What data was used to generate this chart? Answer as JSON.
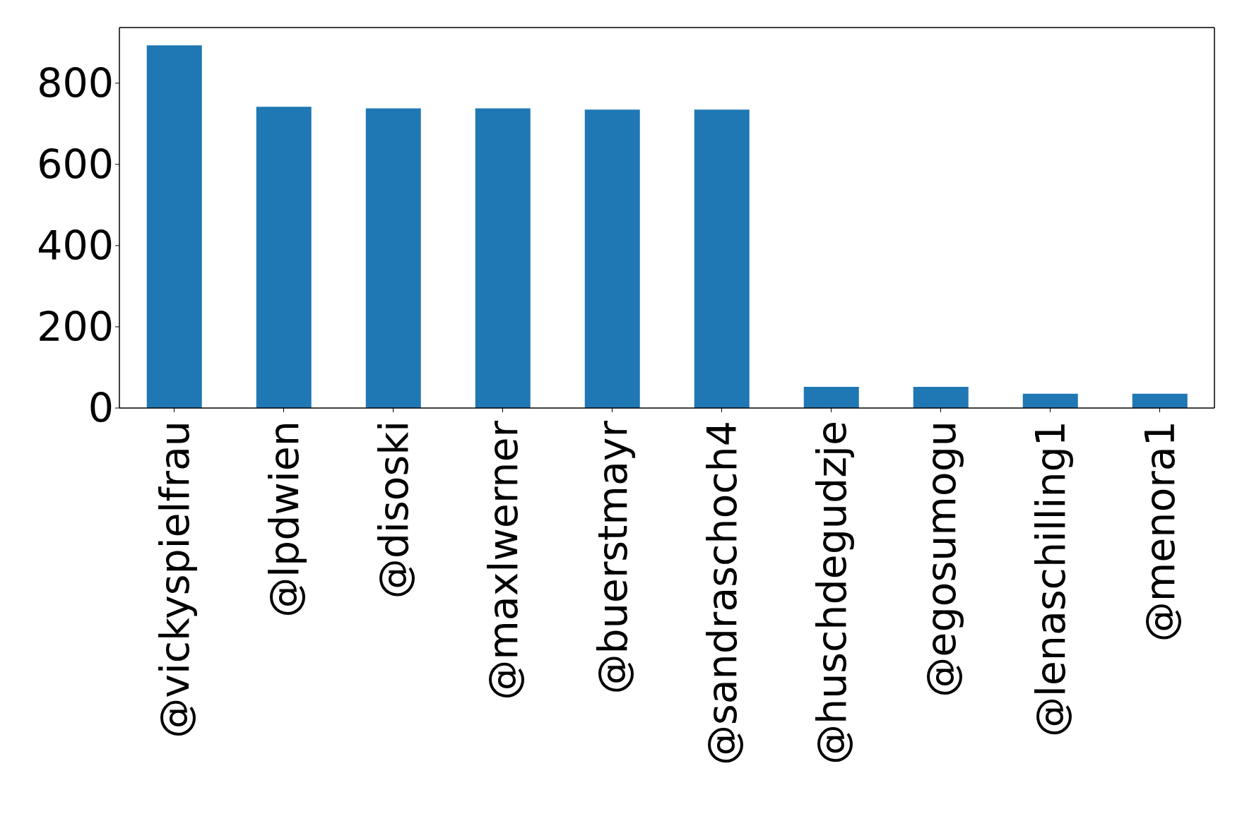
{
  "chart_data": {
    "type": "bar",
    "categories": [
      "@vickyspielfrau",
      "@lpdwien",
      "@disoski",
      "@maxlwerner",
      "@buerstmayr",
      "@sandraschoch4",
      "@huschdegudzje",
      "@egosumogu",
      "@lenaschilling1",
      "@menora1"
    ],
    "values": [
      893,
      742,
      738,
      738,
      735,
      735,
      52,
      52,
      35,
      35
    ],
    "color": "#1f77b4",
    "ylim": [
      0,
      937
    ],
    "yticks": [
      0,
      200,
      400,
      600,
      800
    ]
  }
}
